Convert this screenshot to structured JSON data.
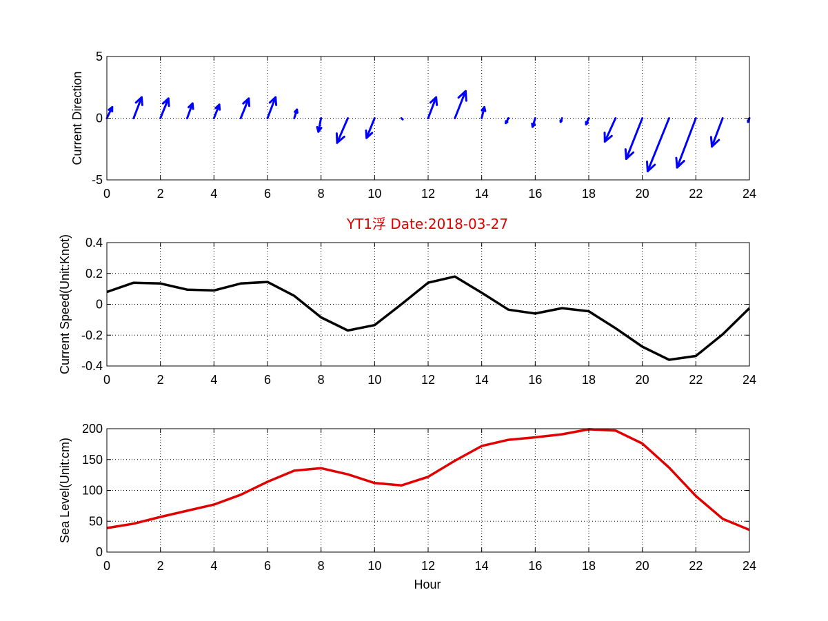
{
  "figure": {
    "title": "YT1浮    Date:2018-03-27",
    "title_color": "#e00000",
    "xlabel": "Hour"
  },
  "chart_data": [
    {
      "type": "quiver",
      "ylabel": "Current Direction",
      "xlim": [
        0,
        24
      ],
      "ylim": [
        -5,
        5
      ],
      "xticks": [
        0,
        2,
        4,
        6,
        8,
        10,
        12,
        14,
        16,
        18,
        20,
        22,
        24
      ],
      "yticks": [
        -5,
        0,
        5
      ],
      "grid": true,
      "color": "#0000ff",
      "vectors": [
        {
          "x": 0,
          "u": 0.2,
          "v": 0.9
        },
        {
          "x": 1,
          "u": 0.3,
          "v": 1.7
        },
        {
          "x": 2,
          "u": 0.3,
          "v": 1.6
        },
        {
          "x": 3,
          "u": 0.2,
          "v": 1.2
        },
        {
          "x": 4,
          "u": 0.2,
          "v": 1.1
        },
        {
          "x": 5,
          "u": 0.3,
          "v": 1.6
        },
        {
          "x": 6,
          "u": 0.3,
          "v": 1.7
        },
        {
          "x": 7,
          "u": 0.1,
          "v": 0.7
        },
        {
          "x": 8,
          "u": -0.1,
          "v": -1.1
        },
        {
          "x": 9,
          "u": -0.4,
          "v": -2.0
        },
        {
          "x": 10,
          "u": -0.3,
          "v": -1.6
        },
        {
          "x": 11,
          "u": 0.05,
          "v": -0.1
        },
        {
          "x": 12,
          "u": 0.3,
          "v": 1.7
        },
        {
          "x": 13,
          "u": 0.4,
          "v": 2.2
        },
        {
          "x": 14,
          "u": 0.1,
          "v": 0.9
        },
        {
          "x": 15,
          "u": -0.1,
          "v": -0.4
        },
        {
          "x": 16,
          "u": -0.1,
          "v": -0.7
        },
        {
          "x": 17,
          "u": -0.05,
          "v": -0.3
        },
        {
          "x": 18,
          "u": -0.1,
          "v": -0.5
        },
        {
          "x": 19,
          "u": -0.4,
          "v": -1.9
        },
        {
          "x": 20,
          "u": -0.6,
          "v": -3.3
        },
        {
          "x": 21,
          "u": -0.8,
          "v": -4.3
        },
        {
          "x": 22,
          "u": -0.7,
          "v": -4.0
        },
        {
          "x": 23,
          "u": -0.4,
          "v": -2.3
        },
        {
          "x": 24,
          "u": -0.05,
          "v": -0.3
        }
      ]
    },
    {
      "type": "line",
      "ylabel": "Current Speed(Unit:Knot)",
      "xlim": [
        0,
        24
      ],
      "ylim": [
        -0.4,
        0.4
      ],
      "xticks": [
        0,
        2,
        4,
        6,
        8,
        10,
        12,
        14,
        16,
        18,
        20,
        22,
        24
      ],
      "yticks": [
        -0.4,
        -0.2,
        0,
        0.2,
        0.4
      ],
      "ytick_labels": [
        "-0.4",
        "-0.2",
        "0",
        "0.2",
        "0.4"
      ],
      "grid": true,
      "color": "#000000",
      "x": [
        0,
        1,
        2,
        3,
        4,
        5,
        6,
        7,
        8,
        9,
        10,
        11,
        12,
        13,
        14,
        15,
        16,
        17,
        18,
        19,
        20,
        21,
        22,
        23,
        24
      ],
      "y": [
        0.08,
        0.14,
        0.135,
        0.095,
        0.09,
        0.135,
        0.145,
        0.055,
        -0.085,
        -0.17,
        -0.135,
        0.0,
        0.14,
        0.18,
        0.075,
        -0.035,
        -0.06,
        -0.025,
        -0.045,
        -0.155,
        -0.275,
        -0.36,
        -0.335,
        -0.195,
        -0.025
      ]
    },
    {
      "type": "line",
      "ylabel": "Sea Level(Unit:cm)",
      "xlabel": "Hour",
      "xlim": [
        0,
        24
      ],
      "ylim": [
        0,
        200
      ],
      "xticks": [
        0,
        2,
        4,
        6,
        8,
        10,
        12,
        14,
        16,
        18,
        20,
        22,
        24
      ],
      "yticks": [
        0,
        50,
        100,
        150,
        200
      ],
      "grid": true,
      "color": "#e00000",
      "x": [
        0,
        1,
        2,
        3,
        4,
        5,
        6,
        7,
        8,
        9,
        10,
        11,
        12,
        13,
        14,
        15,
        16,
        17,
        18,
        19,
        20,
        21,
        22,
        23,
        24
      ],
      "y": [
        39,
        46,
        57,
        67,
        77,
        93,
        114,
        132,
        136,
        126,
        112,
        108,
        122,
        148,
        172,
        182,
        186,
        191,
        199,
        197,
        176,
        137,
        91,
        54,
        36
      ]
    }
  ]
}
